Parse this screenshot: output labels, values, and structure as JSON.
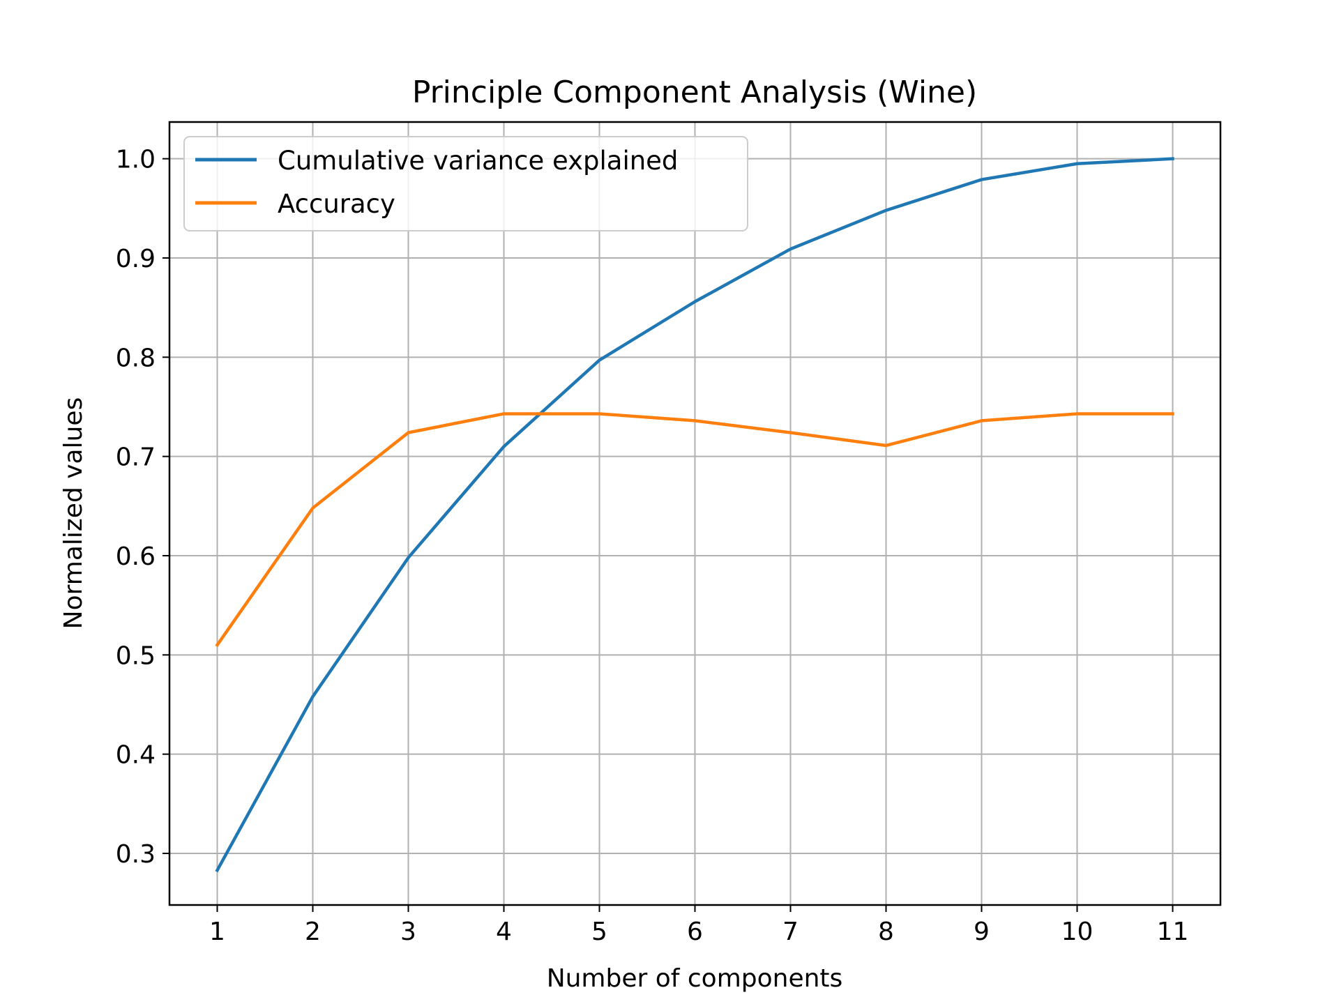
{
  "chart_data": {
    "type": "line",
    "title": "Principle Component Analysis (Wine)",
    "xlabel": "Number of components",
    "ylabel": "Normalized values",
    "x": [
      1,
      2,
      3,
      4,
      5,
      6,
      7,
      8,
      9,
      10,
      11
    ],
    "x_ticks": [
      "1",
      "2",
      "3",
      "4",
      "5",
      "6",
      "7",
      "8",
      "9",
      "10",
      "11"
    ],
    "y_ticks": [
      "0.3",
      "0.4",
      "0.5",
      "0.6",
      "0.7",
      "0.8",
      "0.9",
      "1.0"
    ],
    "xlim": [
      0.5,
      11.5
    ],
    "ylim": [
      0.248,
      1.037
    ],
    "grid": true,
    "legend_position": "top-left",
    "series": [
      {
        "name": "Cumulative variance explained",
        "color": "#1f77b4",
        "values": [
          0.283,
          0.458,
          0.598,
          0.71,
          0.797,
          0.856,
          0.909,
          0.948,
          0.979,
          0.995,
          1.0
        ]
      },
      {
        "name": "Accuracy",
        "color": "#ff7f0e",
        "values": [
          0.51,
          0.648,
          0.724,
          0.743,
          0.743,
          0.736,
          0.724,
          0.711,
          0.736,
          0.743,
          0.743
        ]
      }
    ]
  }
}
